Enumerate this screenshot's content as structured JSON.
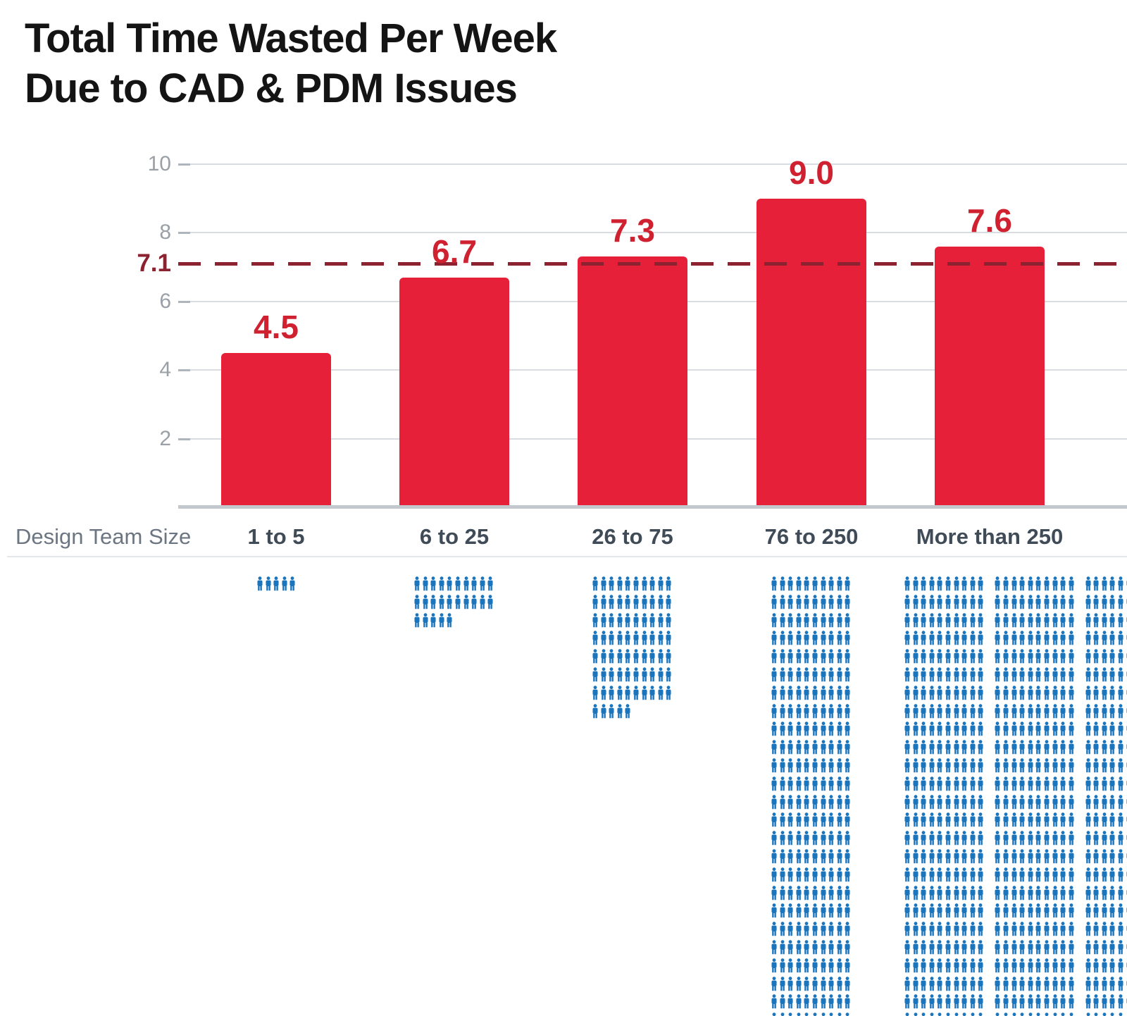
{
  "title": {
    "line1": "Total Time Wasted Per Week",
    "line2": "Due to CAD & PDM Issues"
  },
  "chart_data": {
    "type": "bar",
    "title": "Total Time Wasted Per Week Due to CAD & PDM Issues",
    "categories": [
      "1 to 5",
      "6 to 25",
      "26 to 75",
      "76 to 250",
      "More than 250"
    ],
    "values": [
      4.5,
      6.7,
      7.3,
      9.0,
      7.6
    ],
    "value_labels": [
      "4.5",
      "6.7",
      "7.3",
      "9.0",
      "7.6"
    ],
    "xlabel": "Design Team Size",
    "ylabel": "",
    "ylim": [
      0,
      10
    ],
    "yticks": [
      2,
      4,
      6,
      8,
      10
    ],
    "ytick_labels": [
      "2",
      "4",
      "6",
      "8",
      "10"
    ],
    "grid": true,
    "legend": "none",
    "average_line": {
      "value": 7.1,
      "label": "7.1",
      "style": "dashed"
    },
    "pictogram": {
      "icon": "person-icon",
      "icons_per_row": 10,
      "groups": [
        {
          "category": "1 to 5",
          "icon_count": 5
        },
        {
          "category": "6 to 25",
          "icon_count": 25
        },
        {
          "category": "26 to 75",
          "icon_count": 75
        },
        {
          "category": "76 to 250",
          "icon_count": 250
        },
        {
          "category": "More than 250",
          "rows_visible": 25,
          "blocks_per_row": 3,
          "icons_per_block": 10,
          "icon_count_visible": 750,
          "cut_off": "rows continue past right and bottom edges"
        }
      ]
    }
  },
  "colors": {
    "background": "#ffffff",
    "title_text": "#141414",
    "bar": "#e62039",
    "value_label": "#cf2130",
    "average_line": "#8c212f",
    "pictogram_blue": "#1b75bc",
    "gridline": "#d9dde2",
    "axis_tick": "#aeb5bc",
    "y_tick_label": "#9aa0a6",
    "category_label": "#3f4b57",
    "axis_title": "#6b7682",
    "baseline": "#c2c8ce",
    "separator": "#e4e7ea"
  }
}
